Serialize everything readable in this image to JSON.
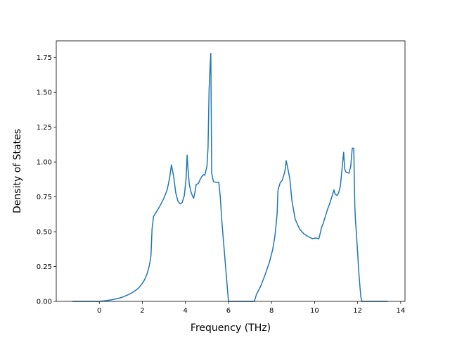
{
  "chart_data": {
    "type": "line",
    "title": "",
    "xlabel": "Frequency (THz)",
    "ylabel": "Density of States",
    "xlim": [
      -2.0,
      14.2
    ],
    "ylim": [
      0.0,
      1.87
    ],
    "xticks": [
      0,
      2,
      4,
      6,
      8,
      10,
      12,
      14
    ],
    "yticks": [
      0.0,
      0.25,
      0.5,
      0.75,
      1.0,
      1.25,
      1.5,
      1.75
    ],
    "ytick_labels": [
      "0.00",
      "0.25",
      "0.50",
      "0.75",
      "1.00",
      "1.25",
      "1.50",
      "1.75"
    ],
    "grid": false,
    "legend": "none",
    "series": [
      {
        "color": "#1f77b4",
        "x": [
          -1.25,
          -0.5,
          0.0,
          0.3,
          0.6,
          0.9,
          1.1,
          1.3,
          1.5,
          1.7,
          1.85,
          2.0,
          2.1,
          2.2,
          2.28,
          2.34,
          2.4,
          2.45,
          2.52,
          2.6,
          2.8,
          3.0,
          3.15,
          3.22,
          3.28,
          3.35,
          3.45,
          3.55,
          3.65,
          3.75,
          3.85,
          3.95,
          4.03,
          4.08,
          4.12,
          4.18,
          4.25,
          4.32,
          4.38,
          4.44,
          4.5,
          4.6,
          4.7,
          4.78,
          4.85,
          4.9,
          5.0,
          5.05,
          5.1,
          5.14,
          5.18,
          5.22,
          5.3,
          5.4,
          5.55,
          5.62,
          5.66,
          5.7,
          6.0,
          6.5,
          7.0,
          7.2,
          7.3,
          7.5,
          7.7,
          7.9,
          8.05,
          8.15,
          8.22,
          8.26,
          8.3,
          8.4,
          8.5,
          8.58,
          8.64,
          8.68,
          8.75,
          8.85,
          8.95,
          9.1,
          9.3,
          9.5,
          9.7,
          9.9,
          10.05,
          10.2,
          10.28,
          10.32,
          10.4,
          10.5,
          10.6,
          10.7,
          10.8,
          10.9,
          10.95,
          11.05,
          11.12,
          11.2,
          11.28,
          11.35,
          11.4,
          11.45,
          11.5,
          11.6,
          11.68,
          11.75,
          11.82,
          11.87,
          11.9,
          11.95,
          12.0,
          12.05,
          12.1,
          12.15,
          12.2,
          12.3,
          13.4
        ],
        "y": [
          0.0,
          0.0,
          0.0,
          0.005,
          0.012,
          0.022,
          0.032,
          0.045,
          0.06,
          0.08,
          0.1,
          0.13,
          0.155,
          0.19,
          0.23,
          0.27,
          0.33,
          0.52,
          0.61,
          0.63,
          0.68,
          0.74,
          0.8,
          0.85,
          0.9,
          0.98,
          0.9,
          0.78,
          0.72,
          0.7,
          0.71,
          0.76,
          0.88,
          1.05,
          0.95,
          0.84,
          0.79,
          0.76,
          0.74,
          0.78,
          0.84,
          0.845,
          0.88,
          0.9,
          0.91,
          0.905,
          0.97,
          1.1,
          1.52,
          1.66,
          1.78,
          0.92,
          0.86,
          0.855,
          0.855,
          0.75,
          0.65,
          0.56,
          0.0,
          0.0,
          0.0,
          0.0,
          0.05,
          0.11,
          0.19,
          0.28,
          0.37,
          0.46,
          0.56,
          0.63,
          0.8,
          0.85,
          0.87,
          0.91,
          0.95,
          1.01,
          0.96,
          0.88,
          0.72,
          0.59,
          0.52,
          0.485,
          0.465,
          0.45,
          0.455,
          0.45,
          0.5,
          0.53,
          0.56,
          0.61,
          0.66,
          0.7,
          0.75,
          0.8,
          0.77,
          0.76,
          0.78,
          0.83,
          0.96,
          1.07,
          0.95,
          0.93,
          0.925,
          0.92,
          0.97,
          1.1,
          1.1,
          0.68,
          0.58,
          0.47,
          0.35,
          0.22,
          0.12,
          0.03,
          0.0,
          0.0,
          0.0
        ]
      }
    ]
  }
}
